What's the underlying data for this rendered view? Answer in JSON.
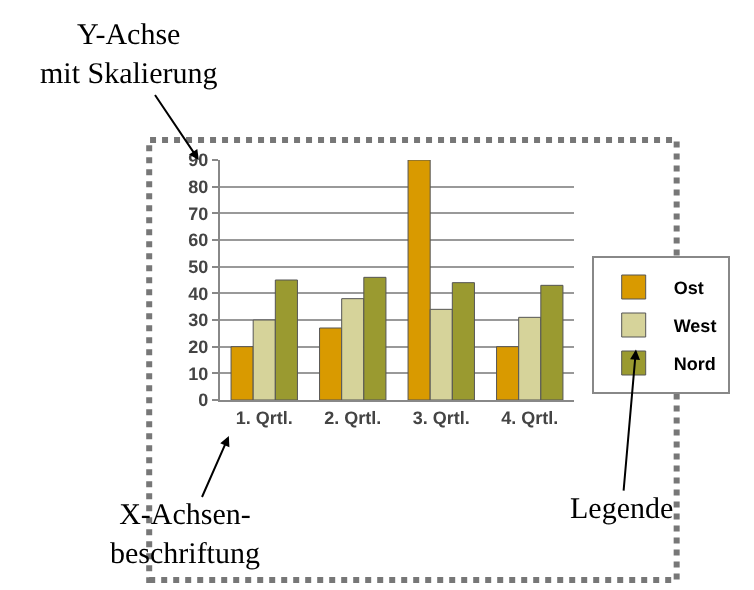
{
  "chart_data": {
    "type": "bar",
    "categories": [
      "1. Qrtl.",
      "2. Qrtl.",
      "3. Qrtl.",
      "4. Qrtl."
    ],
    "series": [
      {
        "name": "Ost",
        "color": "#d99a00",
        "values": [
          20,
          27,
          90,
          20
        ]
      },
      {
        "name": "West",
        "color": "#d6d39a",
        "values": [
          30,
          38,
          34,
          31
        ]
      },
      {
        "name": "Nord",
        "color": "#9a9a30",
        "values": [
          45,
          46,
          44,
          43
        ]
      }
    ],
    "ylim": [
      0,
      90
    ],
    "yticks": [
      0,
      10,
      20,
      30,
      40,
      50,
      60,
      70,
      80,
      90
    ],
    "grid": "y",
    "legend": "right",
    "annotations": [
      "Y-Achse\nmit Skalierung",
      "X-Achsen-\nbeschriftung",
      "Legende"
    ]
  }
}
